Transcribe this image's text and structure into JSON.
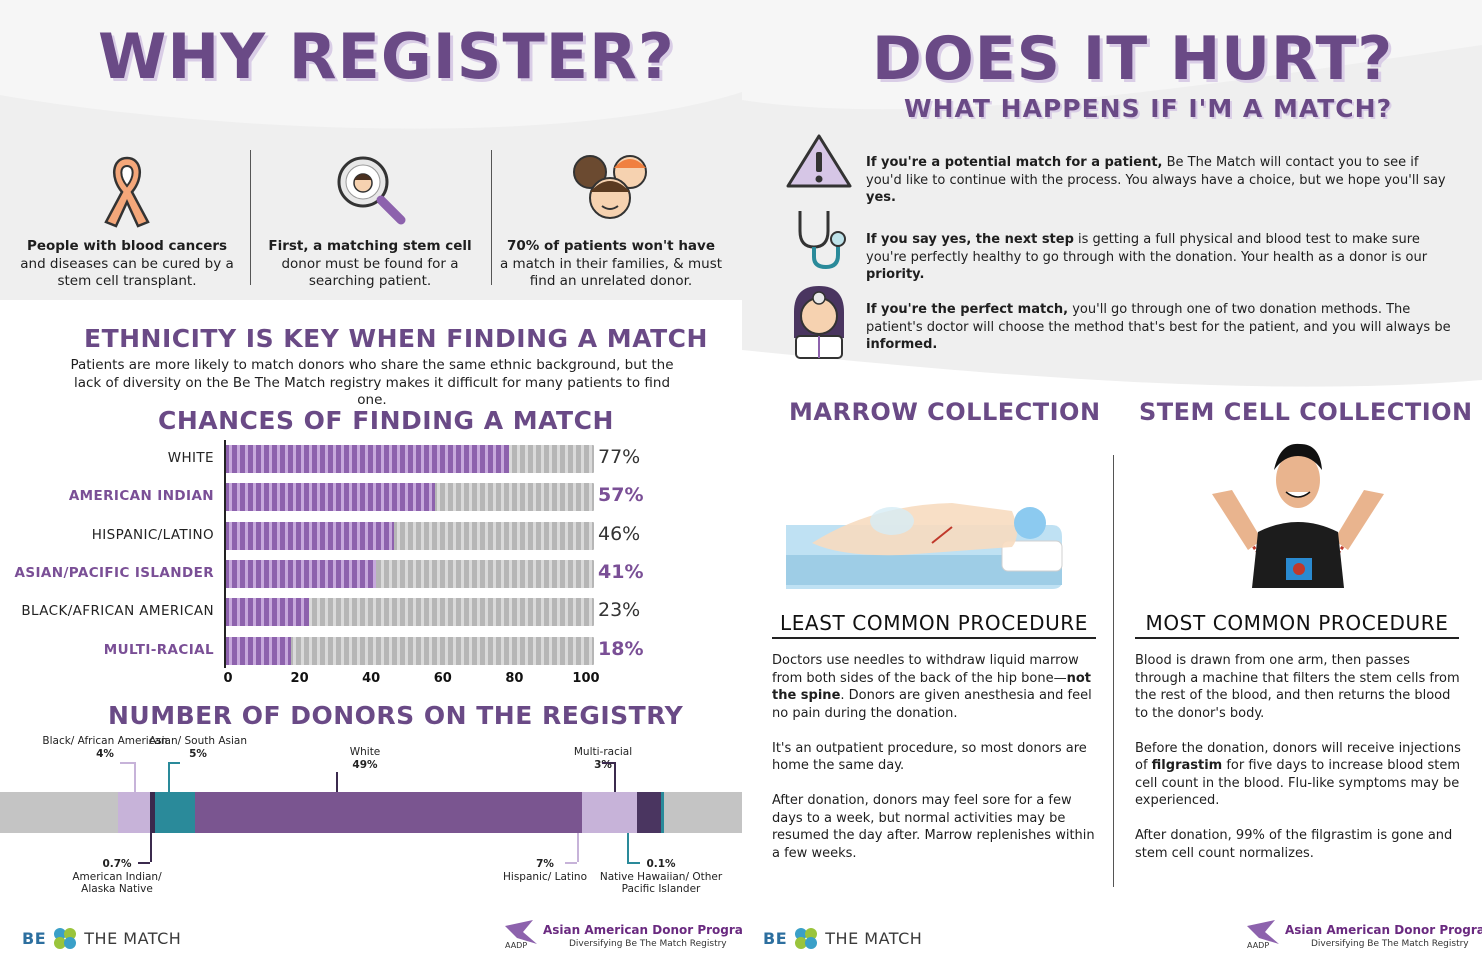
{
  "left": {
    "title": "WHY REGISTER?",
    "reasons": [
      {
        "bold": "People with blood cancers",
        "text": "and diseases can be cured by a stem cell transplant.",
        "icon": "ribbon-icon"
      },
      {
        "bold": "First, a matching stem cell",
        "text": "donor must be found for a searching patient.",
        "icon": "magnifier-icon"
      },
      {
        "bold": "70% of patients won't have",
        "text": "a match in their families, & must find an unrelated donor.",
        "icon": "family-faces-icon"
      }
    ],
    "ethnicity": {
      "heading": "ETHNICITY IS KEY WHEN FINDING A MATCH",
      "text": "Patients are more likely to match donors who share the same ethnic background, but the lack of diversity on the Be The Match registry makes it difficult for many patients to find one."
    },
    "registry_heading": "NUMBER OF DONORS ON THE REGISTRY",
    "registry_segments": [
      {
        "name": "Black/ African American",
        "pct": "4%",
        "value": 4,
        "color": "#c7b3d9"
      },
      {
        "name": "American Indian/ Alaska Native",
        "pct": "0.7%",
        "value": 0.7,
        "color": "#3b2a4d"
      },
      {
        "name": "Asian/ South Asian",
        "pct": "5%",
        "value": 5,
        "color": "#2a8a9a"
      },
      {
        "name": "White",
        "pct": "49%",
        "value": 49,
        "color": "#7a5590"
      },
      {
        "name": "Hispanic/ Latino",
        "pct": "7%",
        "value": 7,
        "color": "#c7b3d9"
      },
      {
        "name": "Multi-racial",
        "pct": "3%",
        "value": 3,
        "color": "#4a3560"
      },
      {
        "name": "Native Hawaiian/ Other Pacific Islander",
        "pct": "0.1%",
        "value": 0.1,
        "color": "#2a8a9a"
      }
    ],
    "logo_be": "BE",
    "logo_match": "THE MATCH",
    "aadp_name": "Asian American Donor Program",
    "aadp_tag": "Diversifying Be The Match Registry",
    "aadp_abbr": "AADP"
  },
  "chart_data": {
    "type": "bar",
    "title": "CHANCES OF FINDING A MATCH",
    "categories": [
      "WHITE",
      "AMERICAN INDIAN",
      "HISPANIC/LATINO",
      "ASIAN/PACIFIC ISLANDER",
      "BLACK/AFRICAN AMERICAN",
      "MULTI-RACIAL"
    ],
    "values": [
      77,
      57,
      46,
      41,
      23,
      18
    ],
    "value_labels": [
      "77%",
      "57%",
      "46%",
      "41%",
      "23%",
      "18%"
    ],
    "highlighted": [
      false,
      true,
      false,
      true,
      false,
      true
    ],
    "xlim": [
      0,
      100
    ],
    "xticks": [
      "0",
      "20",
      "40",
      "60",
      "80",
      "100"
    ],
    "orientation": "horizontal",
    "colors": {
      "fill": "#8d62ad",
      "track": "#b6b6b6",
      "highlight_label": "#7a4f96"
    }
  },
  "right": {
    "title": "DOES IT HURT?",
    "subtitle": "WHAT HAPPENS IF I'M A MATCH?",
    "steps": [
      {
        "bold": "If you're a potential match for a patient,",
        "text": " Be The Match will contact you to see if you'd like to continue with the process. You always have a choice, but we hope you'll say ",
        "bold_end": "yes.",
        "icon": "warning-icon"
      },
      {
        "bold": "If you say yes, the next step",
        "text": " is getting a full physical and blood test to make sure you're perfectly healthy to go through with the donation. Your health as a donor is our ",
        "bold_end": "priority.",
        "icon": "stethoscope-icon"
      },
      {
        "bold": "If you're the perfect match,",
        "text": " you'll go through one of two donation methods. The patient's doctor will choose the method that's best for the patient, and you will always be ",
        "bold_end": "informed.",
        "icon": "doctor-icon"
      }
    ],
    "marrow": {
      "title": "MARROW COLLECTION",
      "sub": "LEAST COMMON PROCEDURE",
      "p1a": "Doctors use needles to withdraw liquid marrow from both sides of the back of the hip bone—",
      "p1b": "not the spine",
      "p1c": ". Donors are given anesthesia and feel no pain during the donation.",
      "p2": "It's an outpatient procedure, so most donors are home the same day.",
      "p3": "After donation, donors may feel sore for a few days to a week, but normal activities may be resumed the day after. Marrow replenishes within a few weeks."
    },
    "stemcell": {
      "title": "STEM CELL COLLECTION",
      "sub": "MOST COMMON PROCEDURE",
      "p1": "Blood is drawn from one arm, then passes through a machine that filters the stem cells from the rest of the blood, and then returns the blood to the donor's body.",
      "p2a": "Before the donation, donors will receive injections of ",
      "p2b": "filgrastim",
      "p2c": " for five days to increase blood stem cell count in the blood. Flu-like symptoms may be experienced.",
      "p3": "After donation, 99% of the filgrastim is gone and stem cell count normalizes."
    },
    "logo_be": "BE",
    "logo_match": "THE MATCH",
    "aadp_name": "Asian American Donor Program",
    "aadp_tag": "Diversifying Be The Match Registry",
    "aadp_abbr": "AADP"
  }
}
